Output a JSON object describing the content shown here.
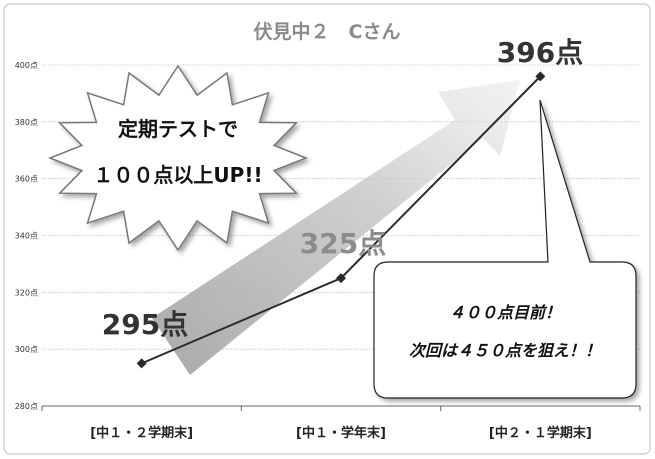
{
  "chart_data": {
    "type": "line",
    "title": "伏見中２　Cさん",
    "categories": [
      "[中１・２学期末]",
      "[中１・学年末]",
      "[中２・１学期末]"
    ],
    "series": [
      {
        "values": [
          295,
          325,
          396
        ]
      }
    ],
    "data_labels": [
      "295点",
      "325点",
      "396点"
    ],
    "ylim": [
      280,
      400
    ],
    "yticks": [
      "280点",
      "300点",
      "320点",
      "340点",
      "360点",
      "380点",
      "400点"
    ],
    "grid": true,
    "annotations": {
      "burst_line1": "定期テストで",
      "burst_line2": "１００点以上UP!!",
      "callout_line1": "４００点目前！",
      "callout_line2": "次回は４５０点を狙え！！"
    },
    "colors": {
      "line": "#2a2a2a",
      "marker": "#2a2a2a",
      "arrow": "#a8a8a8",
      "grid": "#bdbdbd",
      "label_dark": "#333333",
      "label_gray": "#8c8c8c"
    }
  }
}
